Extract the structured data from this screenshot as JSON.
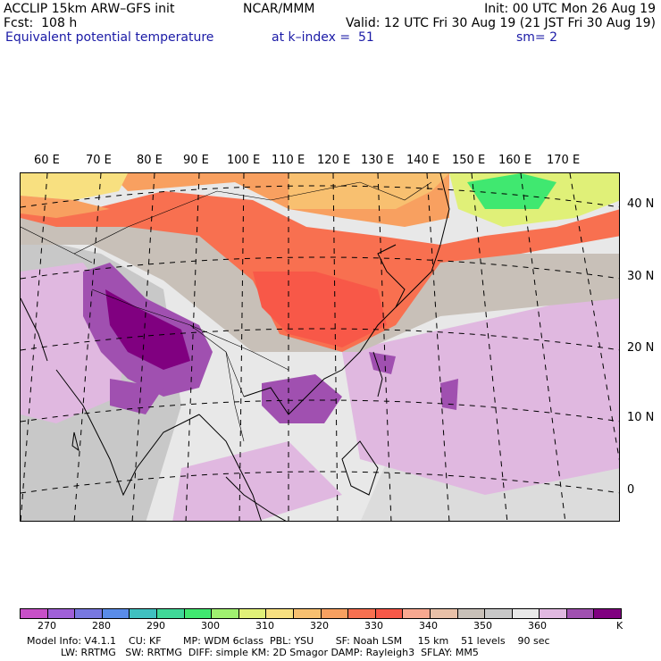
{
  "header": {
    "line1_left": "ACCLIP 15km ARW–GFS init",
    "line1_center": "NCAR/MMM",
    "line1_right": "Init: 00 UTC Mon 26 Aug 19",
    "line2_left": "Fcst:  108 h",
    "line2_right": "Valid: 12 UTC Fri 30 Aug 19 (21 JST Fri 30 Aug 19)",
    "line3_left": "Equivalent potential temperature",
    "line3_center": "at k–index =  51",
    "line3_right": "sm= 2"
  },
  "longitude_labels": [
    "60 E",
    "70 E",
    "80 E",
    "90 E",
    "100 E",
    "110 E",
    "120 E",
    "130 E",
    "140 E",
    "150 E",
    "160 E",
    "170 E"
  ],
  "latitude_labels": [
    "40 N",
    "30 N",
    "20 N",
    "10 N",
    "0"
  ],
  "colorbar": {
    "colors": [
      "#c850c8",
      "#a060d8",
      "#7878e0",
      "#5a8ce8",
      "#40c0c0",
      "#40d898",
      "#40e870",
      "#a0f070",
      "#e0f078",
      "#f8e080",
      "#f8c070",
      "#f8a060",
      "#f87050",
      "#f85848",
      "#f8a890",
      "#e8c0a8",
      "#c8c0b8",
      "#c8c8c8",
      "#e8e8e8",
      "#e0b8e0",
      "#a050b0",
      "#800080"
    ],
    "tick_labels": [
      "270",
      "280",
      "290",
      "300",
      "310",
      "320",
      "330",
      "340",
      "350",
      "360"
    ],
    "unit": "K"
  },
  "footer": {
    "line1": "Model Info: V4.1.1    CU: KF       MP: WDM 6class  PBL: YSU       SF: Noah LSM     15 km    51 levels    90 sec",
    "line2": "LW: RRTMG   SW: RRTMG  DIFF: simple KM: 2D Smagor DAMP: Rayleigh3  SFLAY: MM5"
  }
}
